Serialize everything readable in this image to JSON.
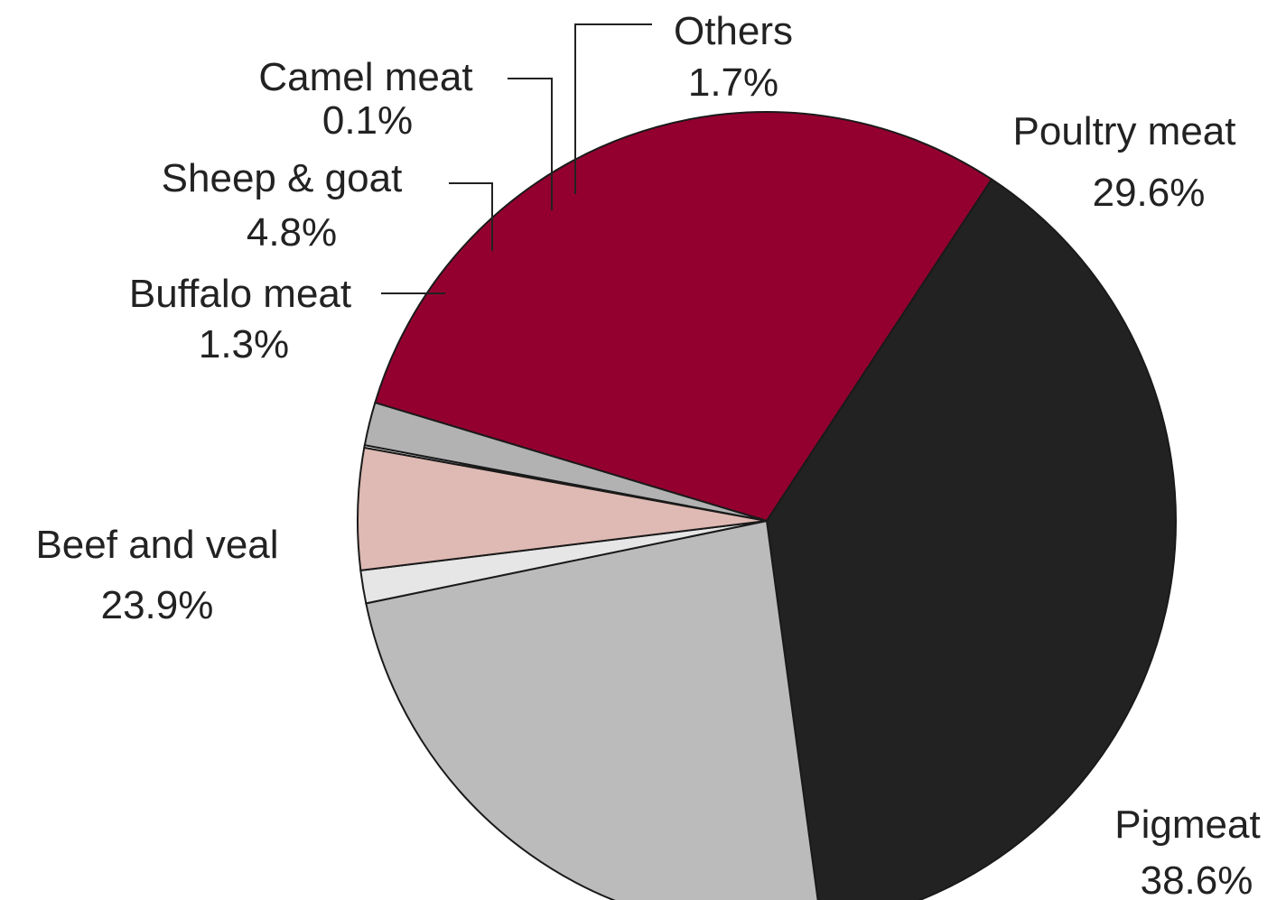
{
  "chart_data": {
    "type": "pie",
    "title": "",
    "slices": [
      {
        "label": "Poultry meat",
        "value": 29.6,
        "display": "29.6%",
        "color": "#930030"
      },
      {
        "label": "Pigmeat",
        "value": 38.6,
        "display": "38.6%",
        "color": "#222222"
      },
      {
        "label": "Beef and veal",
        "value": 23.9,
        "display": "23.9%",
        "color": "#bbbbbb"
      },
      {
        "label": "Buffalo meat",
        "value": 1.3,
        "display": "1.3%",
        "color": "#e6e6e6"
      },
      {
        "label": "Sheep & goat",
        "value": 4.8,
        "display": "4.8%",
        "color": "#dfb9b3"
      },
      {
        "label": "Camel meat",
        "value": 0.1,
        "display": "0.1%",
        "color": "#ffffff"
      },
      {
        "label": "Others",
        "value": 1.7,
        "display": "1.7%",
        "color": "#b2b2b2"
      }
    ],
    "start_angle_deg": -73.2,
    "direction": "clockwise",
    "legend": "none",
    "labels": "outside with leader lines for small slices"
  }
}
